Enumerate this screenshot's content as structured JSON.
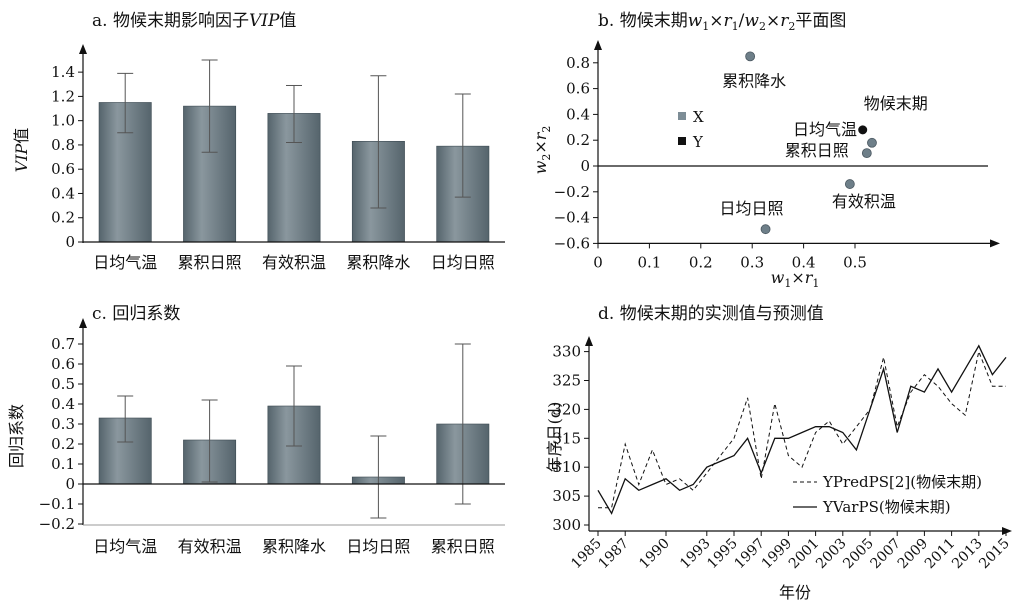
{
  "colors": {
    "bar": "#55646c",
    "bar_light": "#8a979e",
    "point": "#6e7f89",
    "black": "#111111"
  },
  "chart_data": [
    {
      "type": "bar",
      "title": "a. 物候末期影响因子",
      "title_em": "VIP",
      "title_suffix": "值",
      "ylabel_em": "VIP",
      "ylabel_suffix": "值",
      "xlabel": "",
      "ylim": [
        0,
        1.5
      ],
      "yticks": [
        "0",
        "0.2",
        "0.4",
        "0.6",
        "0.8",
        "1.0",
        "1.2",
        "1.4"
      ],
      "categories": [
        "日均气温",
        "累积日照",
        "有效积温",
        "累积降水",
        "日均日照"
      ],
      "values": [
        1.15,
        1.12,
        1.06,
        0.83,
        0.79
      ],
      "error_low": [
        0.9,
        0.74,
        0.82,
        0.28,
        0.37
      ],
      "error_high": [
        1.39,
        1.5,
        1.29,
        1.37,
        1.22
      ]
    },
    {
      "type": "scatter",
      "title": "b. 物候末期w1×r1/w2×r2平面图",
      "title_parts": [
        "b. 物候末期",
        "w",
        "1",
        "×",
        "r",
        "1",
        "/",
        "w",
        "2",
        "×",
        "r",
        "2",
        "平面图"
      ],
      "xlabel_parts": [
        "w",
        "1",
        "×",
        "r",
        "1"
      ],
      "ylabel_parts": [
        "w",
        "2",
        "×",
        "r",
        "2"
      ],
      "xlim": [
        0,
        0.6
      ],
      "ylim": [
        -0.6,
        1.0
      ],
      "xticks": [
        "0",
        "0.1",
        "0.2",
        "0.3",
        "0.4",
        "0.5"
      ],
      "yticks": [
        "−0.6",
        "−0.4",
        "−0.2",
        "0",
        "0.2",
        "0.4",
        "0.6",
        "0.8"
      ],
      "legend": [
        "X",
        "Y"
      ],
      "points": [
        {
          "label": "累积降水",
          "x": 0.296,
          "y": 0.85,
          "series": "X"
        },
        {
          "label": "物候末期",
          "x": 0.515,
          "y": 0.28,
          "series": "Y"
        },
        {
          "label": "日均气温",
          "x": 0.533,
          "y": 0.18,
          "series": "X"
        },
        {
          "label": "累积日照",
          "x": 0.523,
          "y": 0.1,
          "series": "X"
        },
        {
          "label": "有效积温",
          "x": 0.49,
          "y": -0.14,
          "series": "X"
        },
        {
          "label": "日均日照",
          "x": 0.326,
          "y": -0.49,
          "series": "X"
        }
      ]
    },
    {
      "type": "bar",
      "title": "c. 回归系数",
      "ylabel": "回归系数",
      "xlabel": "",
      "ylim": [
        -0.2,
        0.75
      ],
      "yticks": [
        "−0.2",
        "−0.1",
        "0",
        "0.1",
        "0.2",
        "0.3",
        "0.4",
        "0.5",
        "0.6",
        "0.7"
      ],
      "categories": [
        "日均气温",
        "有效积温",
        "累积降水",
        "日均日照",
        "累积日照"
      ],
      "values": [
        0.33,
        0.22,
        0.39,
        0.035,
        0.3
      ],
      "error_low": [
        0.21,
        0.01,
        0.19,
        -0.17,
        -0.1
      ],
      "error_high": [
        0.44,
        0.42,
        0.59,
        0.24,
        0.7
      ]
    },
    {
      "type": "line",
      "title": "d. 物候末期的实测值与预测值",
      "xlabel": "年份",
      "ylabel": "年序日(d)",
      "ylim": [
        300,
        332
      ],
      "yticks": [
        "300",
        "305",
        "310",
        "315",
        "320",
        "325",
        "330"
      ],
      "x": [
        1985,
        1986,
        1987,
        1988,
        1989,
        1990,
        1991,
        1992,
        1993,
        1994,
        1995,
        1996,
        1997,
        1998,
        1999,
        2000,
        2001,
        2002,
        2003,
        2004,
        2005,
        2006,
        2007,
        2008,
        2009,
        2010,
        2011,
        2012,
        2013,
        2014,
        2015
      ],
      "xtick_labels": [
        "1985",
        "1987",
        "1990",
        "1993",
        "1995",
        "1997",
        "1999",
        "2001",
        "2003",
        "2005",
        "2007",
        "2009",
        "2011",
        "2013",
        "2015"
      ],
      "series": [
        {
          "name": "YPredPS[2](物候末期)",
          "style": "dashed",
          "values": [
            303,
            303,
            314,
            307,
            313,
            307,
            308,
            306,
            309,
            312,
            315,
            322,
            308,
            321,
            312,
            310,
            316,
            318,
            314,
            317,
            320,
            329,
            317,
            323,
            326,
            324,
            321,
            319,
            330,
            324,
            324
          ]
        },
        {
          "name": "YVarPS(物候末期)",
          "style": "solid",
          "values": [
            306,
            302,
            308,
            306,
            307,
            308,
            306,
            307,
            310,
            311,
            312,
            315,
            309,
            315,
            315,
            316,
            317,
            317,
            316,
            313,
            320,
            327,
            316,
            324,
            323,
            327,
            323,
            327,
            331,
            326,
            329
          ]
        }
      ]
    }
  ]
}
